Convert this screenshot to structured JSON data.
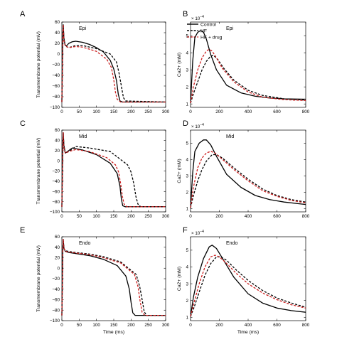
{
  "chart_data": [
    {
      "id": "A",
      "panel_label": "A",
      "type": "line",
      "subtitle": "Epi",
      "xlabel": "",
      "ylabel": "Transmembrane potential (mV)",
      "xlim": [
        0,
        300
      ],
      "ylim": [
        -100,
        60
      ],
      "xticks": [
        "0",
        "50",
        "100",
        "150",
        "200",
        "250",
        "300"
      ],
      "yticks": [
        "60",
        "40",
        "20",
        "0",
        "−20",
        "−40",
        "−60",
        "−80",
        "−100"
      ],
      "legend": {
        "position": "top-right",
        "entries": [
          "Control",
          "HF",
          "HF + drug"
        ]
      },
      "series": [
        {
          "name": "Control",
          "color": "#000000",
          "dash": "solid",
          "x": [
            0,
            3,
            4,
            6,
            9,
            13,
            20,
            30,
            40,
            60,
            80,
            100,
            120,
            140,
            150,
            158,
            163,
            168,
            175,
            300
          ],
          "y": [
            -90,
            40,
            55,
            30,
            18,
            15,
            20,
            23,
            24,
            22,
            18,
            12,
            4,
            -12,
            -28,
            -50,
            -75,
            -88,
            -90,
            -90
          ]
        },
        {
          "name": "HF",
          "color": "#000000",
          "dash": "dash",
          "x": [
            0,
            3,
            4,
            6,
            10,
            20,
            40,
            60,
            100,
            140,
            158,
            165,
            172,
            178,
            185,
            300
          ],
          "y": [
            -90,
            40,
            55,
            25,
            15,
            12,
            16,
            16,
            10,
            0,
            -15,
            -35,
            -60,
            -82,
            -88,
            -90
          ]
        },
        {
          "name": "HF + drug",
          "color": "#cc1f1f",
          "dash": "dash",
          "x": [
            0,
            3,
            4,
            6,
            10,
            20,
            40,
            60,
            100,
            130,
            143,
            150,
            155,
            160,
            170,
            300
          ],
          "y": [
            -90,
            40,
            55,
            25,
            15,
            12,
            14,
            13,
            5,
            -10,
            -25,
            -48,
            -72,
            -85,
            -90,
            -90
          ]
        }
      ]
    },
    {
      "id": "B",
      "panel_label": "B",
      "type": "line",
      "subtitle": "Epi",
      "xlabel": "",
      "ylabel": "Ca2+ (mM)",
      "y_multiplier": "× 10",
      "y_multiplier_exponent": "−4",
      "xlim": [
        0,
        800
      ],
      "ylim": [
        0.8,
        5.8
      ],
      "xticks": [
        "0",
        "200",
        "400",
        "600",
        "800"
      ],
      "yticks": [
        "5",
        "4",
        "3",
        "2",
        "1"
      ],
      "series": [
        {
          "name": "Control",
          "color": "#000000",
          "dash": "solid",
          "x": [
            0,
            15,
            30,
            50,
            70,
            90,
            110,
            140,
            180,
            250,
            350,
            450,
            550,
            650,
            800
          ],
          "y": [
            1.05,
            3.5,
            4.9,
            5.2,
            5.3,
            5.2,
            4.8,
            3.9,
            3.0,
            2.1,
            1.65,
            1.45,
            1.35,
            1.3,
            1.28
          ]
        },
        {
          "name": "HF",
          "color": "#000000",
          "dash": "dash",
          "x": [
            0,
            20,
            50,
            80,
            110,
            140,
            160,
            190,
            230,
            300,
            400,
            500,
            650,
            800
          ],
          "y": [
            1.05,
            1.6,
            2.3,
            3.0,
            3.5,
            3.8,
            3.85,
            3.6,
            3.1,
            2.4,
            1.8,
            1.5,
            1.3,
            1.23
          ]
        },
        {
          "name": "HF + drug",
          "color": "#cc1f1f",
          "dash": "dash",
          "x": [
            0,
            20,
            50,
            80,
            110,
            130,
            150,
            180,
            220,
            300,
            400,
            500,
            650,
            800
          ],
          "y": [
            1.05,
            2.0,
            3.0,
            3.7,
            4.1,
            4.2,
            4.1,
            3.7,
            3.1,
            2.3,
            1.7,
            1.4,
            1.25,
            1.2
          ]
        }
      ]
    },
    {
      "id": "C",
      "panel_label": "C",
      "type": "line",
      "subtitle": "Mid",
      "xlabel": "",
      "ylabel": "Transmembrane potential (mV)",
      "xlim": [
        0,
        300
      ],
      "ylim": [
        -100,
        60
      ],
      "xticks": [
        "0",
        "50",
        "100",
        "150",
        "200",
        "250",
        "300"
      ],
      "yticks": [
        "60",
        "40",
        "20",
        "0",
        "−20",
        "−40",
        "−60",
        "−80",
        "−100"
      ],
      "series": [
        {
          "name": "Control",
          "color": "#000000",
          "dash": "solid",
          "x": [
            0,
            3,
            4,
            6,
            10,
            20,
            30,
            60,
            100,
            140,
            160,
            168,
            172,
            176,
            183,
            300
          ],
          "y": [
            -90,
            40,
            55,
            30,
            15,
            20,
            25,
            21,
            12,
            -5,
            -25,
            -50,
            -75,
            -88,
            -90,
            -90
          ]
        },
        {
          "name": "HF",
          "color": "#000000",
          "dash": "dash",
          "x": [
            0,
            3,
            4,
            6,
            10,
            20,
            40,
            80,
            140,
            190,
            200,
            208,
            214,
            220,
            228,
            300
          ],
          "y": [
            -90,
            40,
            55,
            25,
            15,
            18,
            28,
            25,
            18,
            -8,
            -22,
            -45,
            -70,
            -85,
            -90,
            -90
          ]
        },
        {
          "name": "HF + drug",
          "color": "#cc1f1f",
          "dash": "dash",
          "x": [
            0,
            3,
            4,
            6,
            10,
            20,
            40,
            80,
            130,
            155,
            164,
            170,
            175,
            180,
            188,
            300
          ],
          "y": [
            -90,
            40,
            55,
            25,
            15,
            18,
            22,
            18,
            6,
            -8,
            -22,
            -45,
            -70,
            -85,
            -90,
            -90
          ]
        }
      ]
    },
    {
      "id": "D",
      "panel_label": "D",
      "type": "line",
      "subtitle": "Mid",
      "xlabel": "",
      "ylabel": "Ca2+ (mM)",
      "y_multiplier": "× 10",
      "y_multiplier_exponent": "−4",
      "xlim": [
        0,
        800
      ],
      "ylim": [
        0.8,
        5.8
      ],
      "xticks": [
        "0",
        "200",
        "400",
        "600",
        "800"
      ],
      "yticks": [
        "5",
        "4",
        "3",
        "2",
        "1"
      ],
      "series": [
        {
          "name": "Control",
          "color": "#000000",
          "dash": "solid",
          "x": [
            0,
            15,
            30,
            60,
            90,
            110,
            140,
            180,
            250,
            350,
            450,
            550,
            650,
            800
          ],
          "y": [
            1.05,
            3.2,
            4.5,
            5.0,
            5.2,
            5.2,
            4.9,
            4.2,
            3.1,
            2.3,
            1.8,
            1.55,
            1.4,
            1.25
          ]
        },
        {
          "name": "HF",
          "color": "#000000",
          "dash": "dash",
          "x": [
            0,
            20,
            50,
            80,
            110,
            150,
            180,
            220,
            300,
            400,
            500,
            600,
            700,
            800
          ],
          "y": [
            1.05,
            1.8,
            2.7,
            3.4,
            3.9,
            4.3,
            4.3,
            4.1,
            3.5,
            2.8,
            2.2,
            1.8,
            1.55,
            1.4
          ]
        },
        {
          "name": "HF + drug",
          "color": "#cc1f1f",
          "dash": "dash",
          "x": [
            0,
            20,
            50,
            80,
            110,
            140,
            170,
            210,
            300,
            400,
            500,
            600,
            700,
            800
          ],
          "y": [
            1.05,
            2.3,
            3.5,
            4.1,
            4.4,
            4.5,
            4.4,
            4.1,
            3.4,
            2.7,
            2.1,
            1.75,
            1.5,
            1.35
          ]
        }
      ]
    },
    {
      "id": "E",
      "panel_label": "E",
      "type": "line",
      "subtitle": "Endo",
      "xlabel": "Time (ms)",
      "ylabel": "Transmembrane potential (mV)",
      "xlim": [
        0,
        300
      ],
      "ylim": [
        -100,
        60
      ],
      "xticks": [
        "0",
        "50",
        "100",
        "150",
        "200",
        "250",
        "300"
      ],
      "yticks": [
        "60",
        "40",
        "20",
        "0",
        "−20",
        "−40",
        "−60",
        "−80",
        "−100"
      ],
      "series": [
        {
          "name": "Control",
          "color": "#000000",
          "dash": "solid",
          "x": [
            0,
            3,
            4,
            6,
            10,
            20,
            40,
            80,
            120,
            160,
            185,
            195,
            200,
            205,
            212,
            300
          ],
          "y": [
            -90,
            40,
            55,
            38,
            32,
            30,
            28,
            24,
            17,
            5,
            -15,
            -40,
            -65,
            -85,
            -90,
            -90
          ]
        },
        {
          "name": "HF",
          "color": "#000000",
          "dash": "dash",
          "x": [
            0,
            3,
            4,
            6,
            10,
            20,
            40,
            80,
            120,
            170,
            215,
            225,
            232,
            238,
            245,
            300
          ],
          "y": [
            -90,
            40,
            55,
            38,
            33,
            32,
            30,
            27,
            22,
            12,
            -12,
            -35,
            -60,
            -83,
            -90,
            -90
          ]
        },
        {
          "name": "HF + drug",
          "color": "#cc1f1f",
          "dash": "dash",
          "x": [
            0,
            3,
            4,
            6,
            10,
            20,
            40,
            80,
            120,
            170,
            210,
            220,
            226,
            232,
            240,
            300
          ],
          "y": [
            -90,
            40,
            55,
            38,
            32,
            31,
            29,
            26,
            20,
            10,
            -12,
            -35,
            -62,
            -84,
            -90,
            -90
          ]
        }
      ]
    },
    {
      "id": "F",
      "panel_label": "F",
      "type": "line",
      "subtitle": "Endo",
      "xlabel": "Time (ms)",
      "ylabel": "Ca2+ (mM)",
      "y_multiplier": "× 10",
      "y_multiplier_exponent": "−4",
      "xlim": [
        0,
        800
      ],
      "ylim": [
        0.8,
        5.8
      ],
      "xticks": [
        "0",
        "200",
        "400",
        "600",
        "800"
      ],
      "yticks": [
        "5",
        "4",
        "3",
        "2",
        "1"
      ],
      "series": [
        {
          "name": "Control",
          "color": "#000000",
          "dash": "solid",
          "x": [
            0,
            20,
            50,
            90,
            130,
            150,
            180,
            230,
            300,
            400,
            500,
            600,
            700,
            800
          ],
          "y": [
            1.05,
            2.2,
            3.4,
            4.5,
            5.2,
            5.3,
            5.1,
            4.4,
            3.4,
            2.4,
            1.85,
            1.55,
            1.4,
            1.3
          ]
        },
        {
          "name": "HF",
          "color": "#000000",
          "dash": "dash",
          "x": [
            0,
            25,
            60,
            100,
            140,
            180,
            210,
            250,
            320,
            400,
            500,
            600,
            700,
            800
          ],
          "y": [
            1.05,
            1.6,
            2.5,
            3.5,
            4.2,
            4.6,
            4.6,
            4.4,
            3.8,
            3.2,
            2.6,
            2.15,
            1.85,
            1.6
          ]
        },
        {
          "name": "HF + drug",
          "color": "#cc1f1f",
          "dash": "dash",
          "x": [
            0,
            25,
            60,
            100,
            140,
            170,
            200,
            240,
            320,
            400,
            500,
            600,
            700,
            800
          ],
          "y": [
            1.05,
            1.9,
            3.0,
            4.0,
            4.6,
            4.7,
            4.6,
            4.3,
            3.6,
            3.0,
            2.45,
            2.05,
            1.75,
            1.55
          ]
        }
      ]
    }
  ]
}
